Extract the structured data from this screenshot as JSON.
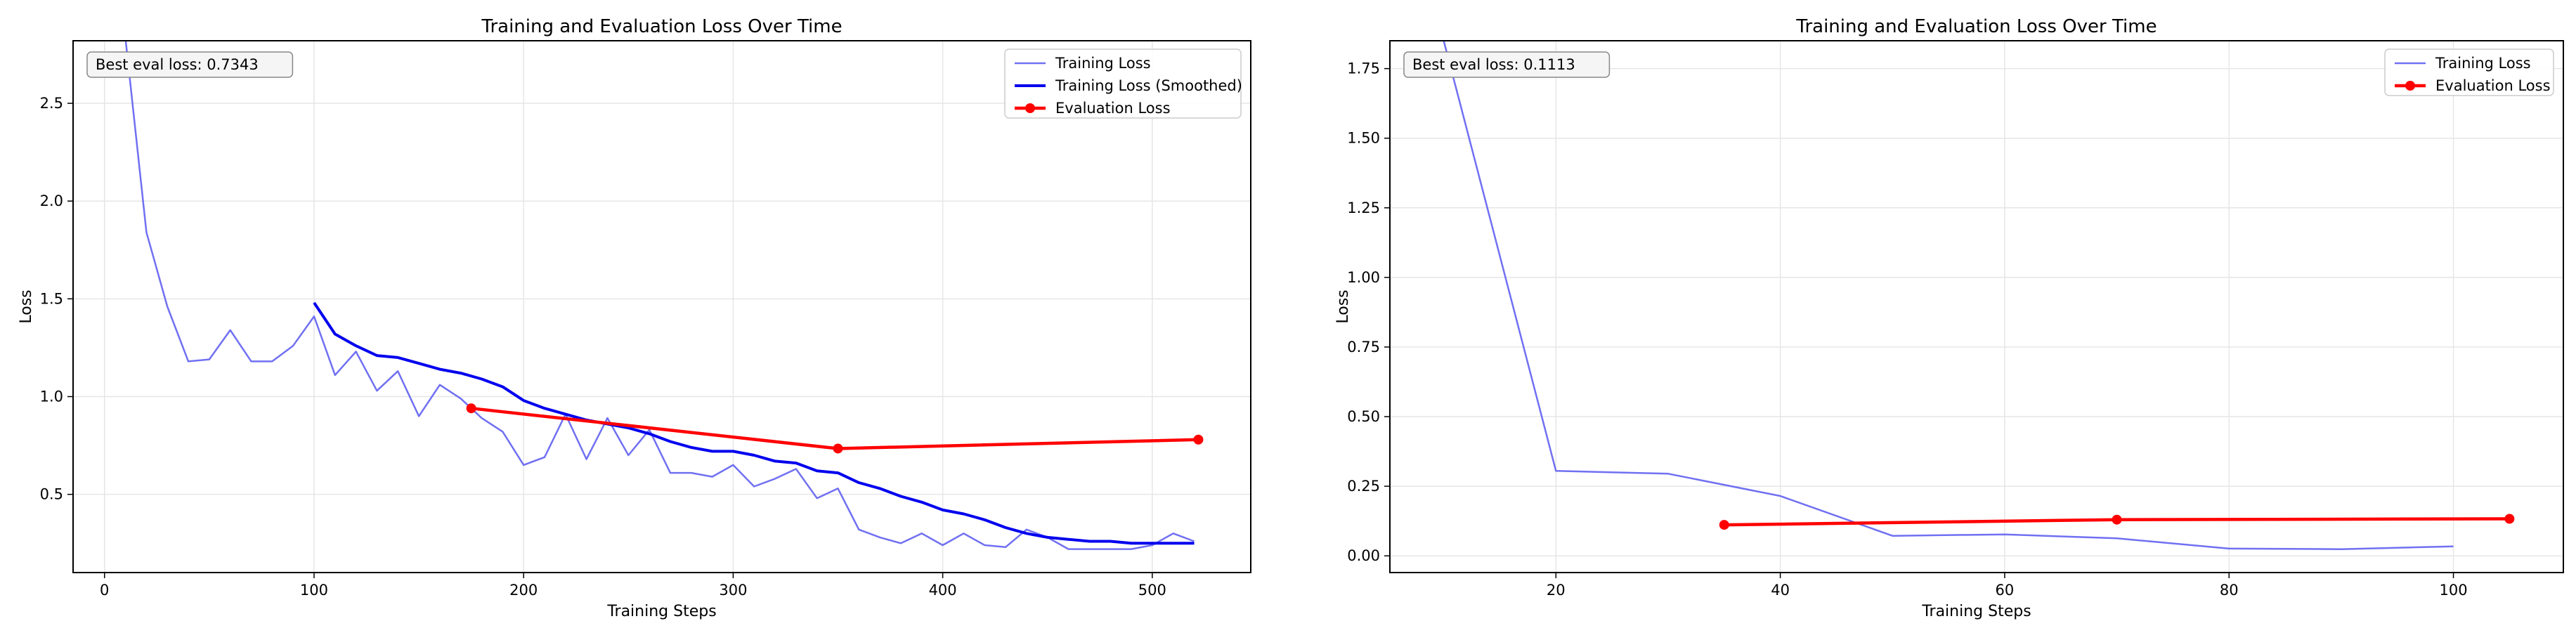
{
  "chart_data": [
    {
      "type": "line",
      "title": "Training and Evaluation Loss Over Time",
      "xlabel": "Training Steps",
      "ylabel": "Loss",
      "xlim": [
        -15,
        547
      ],
      "ylim": [
        0.1,
        2.82
      ],
      "xticks": [
        0,
        100,
        200,
        300,
        400,
        500
      ],
      "yticks": [
        0.5,
        1.0,
        1.5,
        2.0,
        2.5
      ],
      "grid": true,
      "legend_position": "top-right",
      "annotation": "Best eval loss: 0.7343",
      "series": [
        {
          "name": "Training Loss",
          "color": "#7070f2",
          "x": [
            10,
            20,
            30,
            40,
            50,
            60,
            70,
            80,
            90,
            100,
            110,
            120,
            130,
            140,
            150,
            160,
            170,
            180,
            190,
            200,
            210,
            220,
            230,
            240,
            250,
            260,
            270,
            280,
            290,
            300,
            310,
            320,
            330,
            340,
            350,
            360,
            370,
            380,
            390,
            400,
            410,
            420,
            430,
            440,
            450,
            460,
            470,
            480,
            490,
            500,
            510,
            520
          ],
          "values": [
            2.83,
            1.84,
            1.46,
            1.18,
            1.19,
            1.34,
            1.18,
            1.18,
            1.26,
            1.41,
            1.11,
            1.23,
            1.03,
            1.13,
            0.9,
            1.06,
            0.99,
            0.89,
            0.82,
            0.65,
            0.69,
            0.91,
            0.68,
            0.89,
            0.7,
            0.83,
            0.61,
            0.61,
            0.59,
            0.65,
            0.54,
            0.58,
            0.63,
            0.48,
            0.53,
            0.32,
            0.28,
            0.25,
            0.3,
            0.24,
            0.3,
            0.24,
            0.23,
            0.32,
            0.28,
            0.22,
            0.22,
            0.22,
            0.22,
            0.24,
            0.3,
            0.26
          ]
        },
        {
          "name": "Training Loss (Smoothed)",
          "color": "#0000ee",
          "x": [
            100,
            110,
            120,
            130,
            140,
            150,
            160,
            170,
            180,
            190,
            200,
            210,
            220,
            230,
            240,
            250,
            260,
            270,
            280,
            290,
            300,
            310,
            320,
            330,
            340,
            350,
            360,
            370,
            380,
            390,
            400,
            410,
            420,
            430,
            440,
            450,
            460,
            470,
            480,
            490,
            500,
            510,
            520
          ],
          "values": [
            1.48,
            1.32,
            1.26,
            1.21,
            1.2,
            1.17,
            1.14,
            1.12,
            1.09,
            1.05,
            0.98,
            0.94,
            0.91,
            0.88,
            0.86,
            0.84,
            0.81,
            0.77,
            0.74,
            0.72,
            0.72,
            0.7,
            0.67,
            0.66,
            0.62,
            0.61,
            0.56,
            0.53,
            0.49,
            0.46,
            0.42,
            0.4,
            0.37,
            0.33,
            0.3,
            0.28,
            0.27,
            0.26,
            0.26,
            0.25,
            0.25,
            0.25,
            0.25
          ]
        },
        {
          "name": "Evaluation Loss",
          "color": "#ff0000",
          "markers": true,
          "x": [
            175,
            350,
            522
          ],
          "values": [
            0.94,
            0.7343,
            0.78
          ]
        }
      ]
    },
    {
      "type": "line",
      "title": "Training and Evaluation Loss Over Time",
      "xlabel": "Training Steps",
      "ylabel": "Loss",
      "xlim": [
        5.2,
        109.8
      ],
      "ylim": [
        -0.06,
        1.85
      ],
      "xticks": [
        20,
        40,
        60,
        80,
        100
      ],
      "yticks": [
        0.0,
        0.25,
        0.5,
        0.75,
        1.0,
        1.25,
        1.5,
        1.75
      ],
      "grid": true,
      "legend_position": "top-right",
      "annotation": "Best eval loss: 0.1113",
      "series": [
        {
          "name": "Training Loss",
          "color": "#7070f2",
          "x": [
            10,
            20,
            30,
            40,
            50,
            60,
            70,
            80,
            90,
            100
          ],
          "values": [
            1.85,
            0.305,
            0.295,
            0.215,
            0.072,
            0.077,
            0.063,
            0.026,
            0.024,
            0.034
          ]
        },
        {
          "name": "Evaluation Loss",
          "color": "#ff0000",
          "markers": true,
          "x": [
            35,
            70,
            105
          ],
          "values": [
            0.1113,
            0.13,
            0.133
          ]
        }
      ]
    }
  ]
}
